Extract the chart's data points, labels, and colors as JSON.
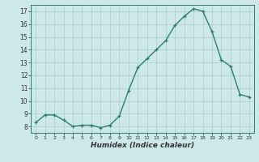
{
  "x": [
    0,
    1,
    2,
    3,
    4,
    5,
    6,
    7,
    8,
    9,
    10,
    11,
    12,
    13,
    14,
    15,
    16,
    17,
    18,
    19,
    20,
    21,
    22,
    23
  ],
  "y": [
    8.3,
    8.9,
    8.9,
    8.5,
    8.0,
    8.1,
    8.1,
    7.9,
    8.1,
    8.8,
    10.8,
    12.6,
    13.3,
    14.0,
    14.7,
    15.9,
    16.6,
    17.2,
    17.0,
    15.4,
    13.2,
    12.7,
    10.5,
    10.3
  ],
  "xlabel": "Humidex (Indice chaleur)",
  "line_color": "#2e7d6e",
  "bg_color": "#cce8e8",
  "grid_color": "#aacccc",
  "label_color": "#333333",
  "ylim": [
    7.5,
    17.5
  ],
  "xlim": [
    -0.5,
    23.5
  ],
  "yticks": [
    8,
    9,
    10,
    11,
    12,
    13,
    14,
    15,
    16,
    17
  ],
  "xticks": [
    0,
    1,
    2,
    3,
    4,
    5,
    6,
    7,
    8,
    9,
    10,
    11,
    12,
    13,
    14,
    15,
    16,
    17,
    18,
    19,
    20,
    21,
    22,
    23
  ]
}
